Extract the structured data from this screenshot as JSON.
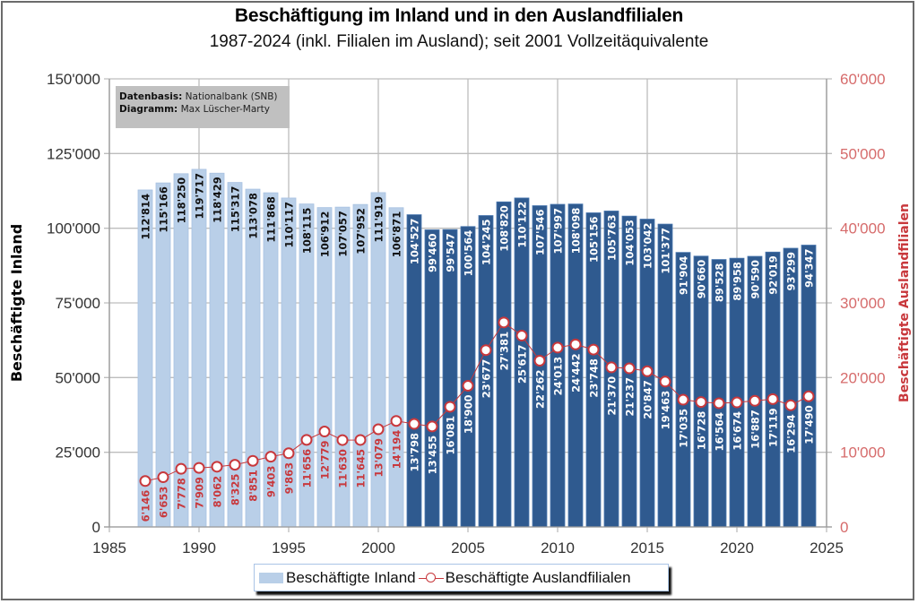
{
  "chart_data": {
    "type": "bar",
    "combo": "bar+line (dual axis)",
    "title": "Beschäftigung im Inland und in den Auslandfilialen",
    "subtitle": "1987-2024 (inkl. Filialen im Ausland); seit 2001 Vollzeitäquivalente",
    "xlabel": "",
    "ylabel": "Beschäftigte Inland",
    "ylabel_right": "Beschäftigte Auslandfilialen",
    "xlim": [
      1985,
      2025
    ],
    "ylim": [
      0,
      150000
    ],
    "ylim_right": [
      0,
      60000
    ],
    "x_ticks": [
      "1985",
      "1990",
      "1995",
      "2000",
      "2005",
      "2010",
      "2015",
      "2020",
      "2025"
    ],
    "y_ticks": [
      "0",
      "25'000",
      "50'000",
      "75'000",
      "100'000",
      "125'000",
      "150'000"
    ],
    "y_ticks_right": [
      "0",
      "10'000",
      "20'000",
      "30'000",
      "40'000",
      "50'000",
      "60'000"
    ],
    "grid": true,
    "legend_position": "bottom",
    "x": [
      1987,
      1988,
      1989,
      1990,
      1991,
      1992,
      1993,
      1994,
      1995,
      1996,
      1997,
      1998,
      1999,
      2000,
      2001,
      2002,
      2003,
      2004,
      2005,
      2006,
      2007,
      2008,
      2009,
      2010,
      2011,
      2012,
      2013,
      2014,
      2015,
      2016,
      2017,
      2018,
      2019,
      2020,
      2021,
      2022,
      2023,
      2024
    ],
    "series": [
      {
        "name": "Beschäftigte Inland",
        "type": "bar",
        "axis": "left",
        "values": [
          112814,
          115166,
          118250,
          119717,
          118429,
          115317,
          113078,
          111868,
          110117,
          108115,
          106912,
          107057,
          107952,
          111919,
          106871,
          104527,
          99460,
          99547,
          100564,
          104245,
          108820,
          110122,
          107546,
          107997,
          108098,
          105156,
          105763,
          104053,
          103042,
          101377,
          91904,
          90660,
          89528,
          89958,
          90590,
          92019,
          93299,
          94347
        ],
        "labels": [
          "112'814",
          "115'166",
          "118'250",
          "119'717",
          "118'429",
          "115'317",
          "113'078",
          "111'868",
          "110'117",
          "108'115",
          "106'912",
          "107'057",
          "107'952",
          "111'919",
          "106'871",
          "104'527",
          "99'460",
          "99'547",
          "100'564",
          "104'245",
          "108'820",
          "110'122",
          "107'546",
          "107'997",
          "108'098",
          "105'156",
          "105'763",
          "104'053",
          "103'042",
          "101'377",
          "91'904",
          "90'660",
          "89'528",
          "89'958",
          "90'590",
          "92'019",
          "93'299",
          "94'347"
        ]
      },
      {
        "name": "Beschäftigte Auslandfilialen",
        "type": "line",
        "axis": "right",
        "values": [
          6146,
          6653,
          7778,
          7909,
          8062,
          8325,
          8851,
          9403,
          9863,
          11656,
          12779,
          11630,
          11645,
          13079,
          14194,
          13798,
          13455,
          16081,
          18900,
          23677,
          27381,
          25617,
          22262,
          24013,
          24442,
          23748,
          21370,
          21237,
          20847,
          19463,
          17035,
          16728,
          16564,
          16674,
          16887,
          17119,
          16294,
          17490
        ],
        "labels": [
          "6'146",
          "6'653",
          "7'778",
          "7'909",
          "8'062",
          "8'325",
          "8'851",
          "9'403",
          "9'863",
          "11'656",
          "12'779",
          "11'630",
          "11'645",
          "13'079",
          "14'194",
          "13'798",
          "13'455",
          "16'081",
          "18'900",
          "23'677",
          "27'381",
          "25'617",
          "22'262",
          "24'013",
          "24'442",
          "23'748",
          "21'370",
          "21'237",
          "20'847",
          "19'463",
          "17'035",
          "16'728",
          "16'564",
          "16'674",
          "16'887",
          "17'119",
          "16'294",
          "17'490"
        ]
      }
    ],
    "colors": {
      "bar_light": "#b9cfe8",
      "bar_dark": "#2f5a8f",
      "line": "#c8383c",
      "marker_fill": "#ffffff",
      "right_axis": "#d66b6b",
      "grid": "#bdbdbd"
    },
    "bar_color_switch_year": 2002
  },
  "source_box": {
    "line1_key": "Datenbasis:",
    "line1_val": " Nationalbank (SNB)",
    "line2_key": "Diagramm:",
    "line2_val": " Max Lüscher-Marty"
  },
  "legend": {
    "bar_label": "Beschäftigte Inland",
    "line_label": "Beschäftigte Auslandfilialen"
  }
}
